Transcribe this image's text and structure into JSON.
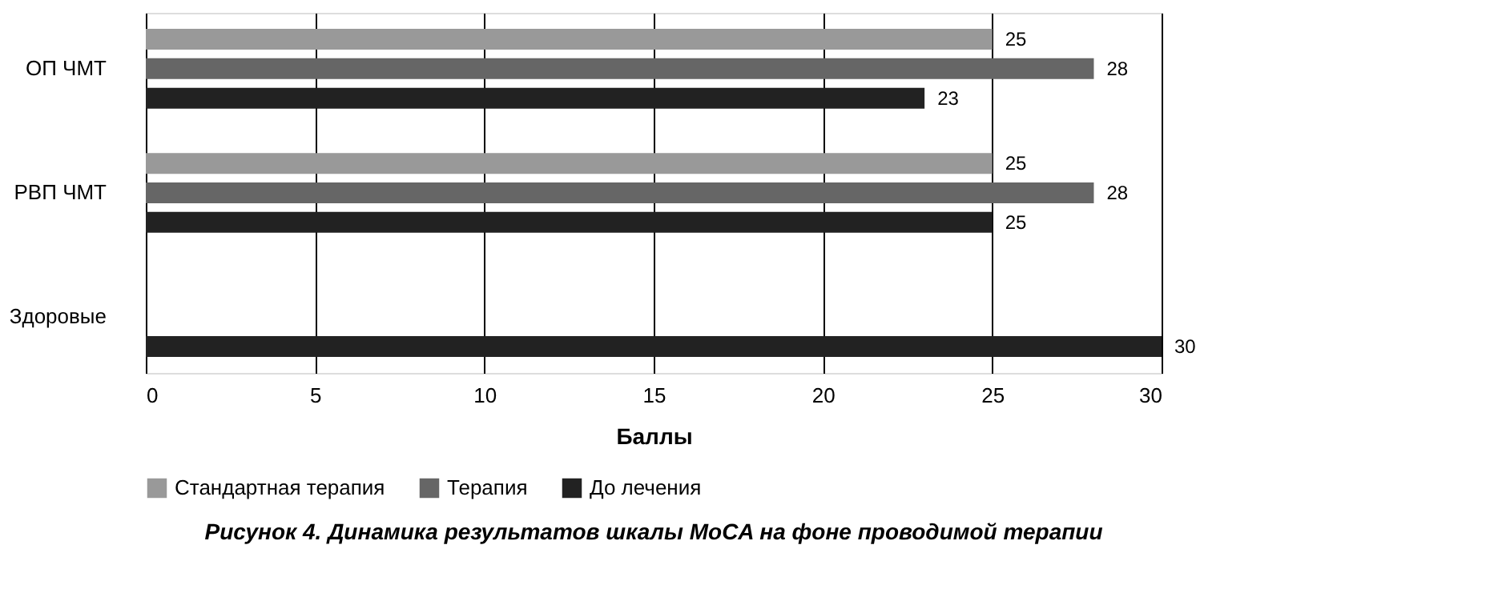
{
  "chart_data": {
    "type": "bar",
    "orientation": "horizontal",
    "title": "Рисунок 4. Динамика результатов шкалы MoCA на фоне проводимой терапии",
    "categories": [
      "ОП ЧМТ",
      "РВП ЧМТ",
      "Здоровые"
    ],
    "series": [
      {
        "name": "Стандартная терапия",
        "color": "#999999",
        "values": [
          25,
          25,
          null
        ]
      },
      {
        "name": "Терапия",
        "color": "#666666",
        "values": [
          28,
          28,
          null
        ]
      },
      {
        "name": "До лечения",
        "color": "#222222",
        "values": [
          23,
          25,
          30
        ]
      }
    ],
    "xlabel": "Баллы",
    "xlim": [
      0,
      30
    ],
    "xticks": [
      0,
      5,
      10,
      15,
      20,
      25,
      30
    ],
    "grid": "x",
    "legend": "bottom",
    "data_labels": true
  }
}
